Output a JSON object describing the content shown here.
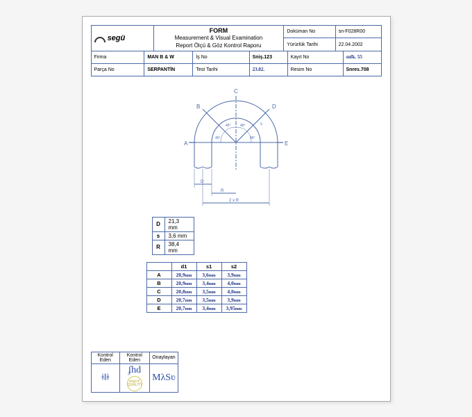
{
  "header": {
    "logo_text": "segü",
    "title_big": "FORM",
    "title_line1": "Measurement & Visual Examination",
    "title_line2": "Report Ölçü & Göz Kontrol Raporu",
    "dokuman_label": "Doküman No",
    "dokuman_val": "sn-F028R00",
    "yururluk_label": "Yürürlük Tarihi",
    "yururluk_val": "22.04.2002"
  },
  "info": {
    "firma_label": "Firma",
    "firma_val": "MAN B & W",
    "isno_label": "İş No",
    "isno_val": "Sniş.123",
    "kayitno_label": "Kayıt No",
    "kayitno_val": "snfk. 55",
    "parcano_label": "Parça No",
    "parcano_val": "SERPANTİN",
    "testtarihi_label": "Test Tarihi",
    "testtarihi_val": "23.02.",
    "resimno_label": "Resim No",
    "resimno_val": "Snres.708"
  },
  "diagram": {
    "points": [
      "A",
      "B",
      "C",
      "D",
      "E"
    ],
    "angles": [
      "45°",
      "45°",
      "45°",
      "45°"
    ],
    "dims": [
      "D",
      "s",
      "R",
      "2 x R"
    ],
    "stroke": "#4a68a8"
  },
  "dsr": {
    "rows": [
      {
        "l": "D",
        "v": "21,3 mm"
      },
      {
        "l": "s",
        "v": "3,6 mm"
      },
      {
        "l": "R",
        "v": "38,4 mm"
      }
    ]
  },
  "measure": {
    "cols": [
      "d1",
      "s1",
      "s2"
    ],
    "rows": [
      {
        "l": "A",
        "d1": "20,9",
        "s1": "3,6",
        "s2": "3,9"
      },
      {
        "l": "B",
        "d1": "20,9",
        "s1": "3,4",
        "s2": "4,0"
      },
      {
        "l": "C",
        "d1": "20,8",
        "s1": "3,5",
        "s2": "4,0"
      },
      {
        "l": "D",
        "d1": "20,7",
        "s1": "3,5",
        "s2": "3,9"
      },
      {
        "l": "E",
        "d1": "20,7",
        "s1": "3,4",
        "s2": "3,95"
      }
    ],
    "unit": "mm"
  },
  "footer": {
    "kontrol_eden": "Kontrol Eden",
    "onaylayan": "Onaylayan",
    "stamp_text": "segü K QUALITY"
  }
}
